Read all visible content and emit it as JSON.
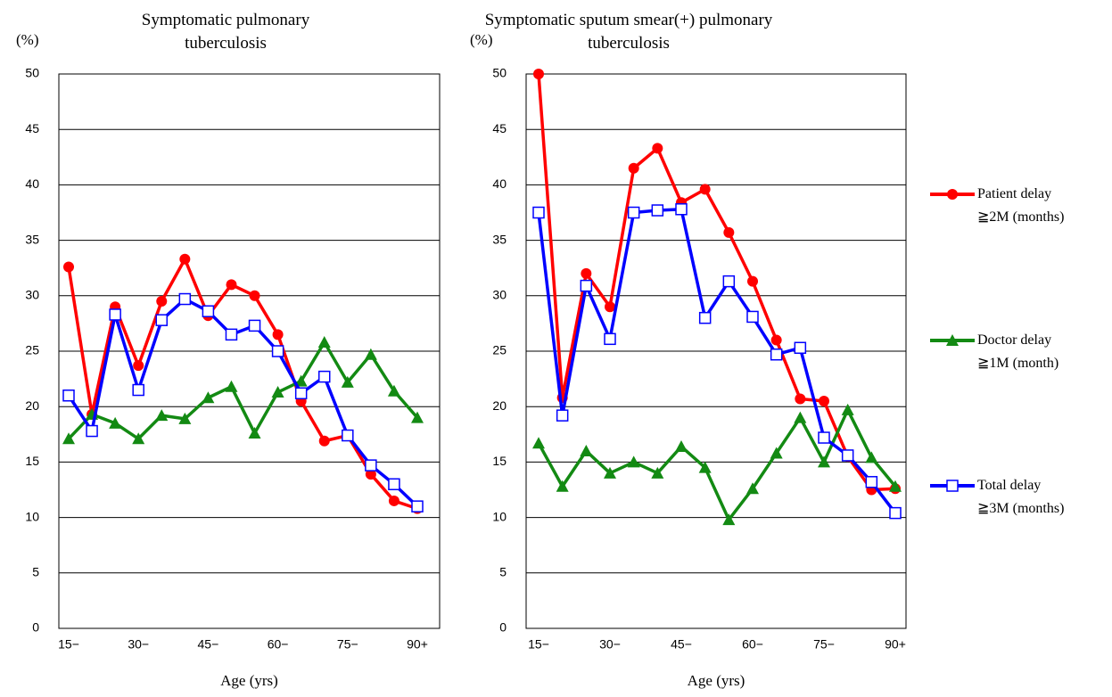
{
  "chart_data": [
    {
      "type": "line",
      "title": "Symptomatic pulmonary\ntuberculosis",
      "y_label": "(%)",
      "x_label": "Age (yrs)",
      "categories": [
        "15−",
        null,
        null,
        "30−",
        null,
        null,
        "45−",
        null,
        null,
        "60−",
        null,
        null,
        "75−",
        null,
        null,
        "90+"
      ],
      "ylim": [
        0,
        50
      ],
      "yticks": [
        0,
        5,
        10,
        15,
        20,
        25,
        30,
        35,
        40,
        45,
        50
      ],
      "grid": true,
      "series": [
        {
          "name": "Patient delay\n≧2M (months)",
          "color": "#ff0000",
          "marker": "circle",
          "values": [
            32.6,
            19.3,
            29.0,
            23.7,
            29.5,
            33.3,
            28.2,
            31.0,
            30.0,
            26.5,
            20.5,
            16.9,
            17.4,
            13.9,
            11.5,
            10.8
          ]
        },
        {
          "name": "Doctor delay\n≧1M (month)",
          "color": "#138a13",
          "marker": "triangle",
          "values": [
            17.1,
            19.3,
            18.5,
            17.1,
            19.2,
            18.9,
            20.8,
            21.8,
            17.6,
            21.3,
            22.3,
            25.8,
            22.2,
            24.7,
            21.4,
            19.0
          ]
        },
        {
          "name": "Total delay\n≧3M (months)",
          "color": "#0000ff",
          "marker": "square",
          "values": [
            21.0,
            17.8,
            28.3,
            21.5,
            27.8,
            29.7,
            28.6,
            26.5,
            27.3,
            25.0,
            21.2,
            22.7,
            17.4,
            14.7,
            13.0,
            11.0
          ]
        }
      ]
    },
    {
      "type": "line",
      "title": "Symptomatic  sputum smear(+) pulmonary\ntuberculosis",
      "y_label": "(%)",
      "x_label": "Age (yrs)",
      "categories": [
        "15−",
        null,
        null,
        "30−",
        null,
        null,
        "45−",
        null,
        null,
        "60−",
        null,
        null,
        "75−",
        null,
        null,
        "90+"
      ],
      "ylim": [
        0,
        50
      ],
      "yticks": [
        0,
        5,
        10,
        15,
        20,
        25,
        30,
        35,
        40,
        45,
        50
      ],
      "grid": true,
      "series": [
        {
          "color": "#ff0000",
          "marker": "circle",
          "values": [
            50.0,
            20.8,
            32.0,
            29.0,
            41.5,
            43.3,
            38.4,
            39.6,
            35.7,
            31.3,
            26.0,
            20.7,
            20.5,
            15.5,
            12.5,
            12.6
          ]
        },
        {
          "color": "#138a13",
          "marker": "triangle",
          "values": [
            16.7,
            12.8,
            16.0,
            14.0,
            15.0,
            14.0,
            16.4,
            14.5,
            9.8,
            12.6,
            15.8,
            19.0,
            15.0,
            19.7,
            15.4,
            12.8
          ]
        },
        {
          "color": "#0000ff",
          "marker": "square",
          "values": [
            37.5,
            19.2,
            30.9,
            26.1,
            37.5,
            37.7,
            37.8,
            28.0,
            31.3,
            28.1,
            24.7,
            25.3,
            17.2,
            15.6,
            13.2,
            10.4
          ]
        }
      ]
    }
  ]
}
